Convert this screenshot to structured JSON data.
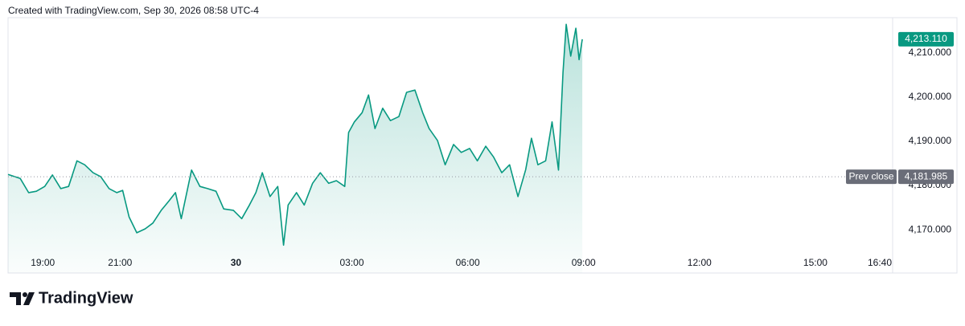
{
  "caption": "Created with TradingView.com, Sep 30, 2026 08:58 UTC-4",
  "brand": "TradingView",
  "chart_data": {
    "type": "area",
    "x": [
      "18:06",
      "18:25",
      "18:38",
      "18:50",
      "19:03",
      "19:15",
      "19:28",
      "19:40",
      "19:53",
      "20:05",
      "20:18",
      "20:30",
      "20:43",
      "20:55",
      "21:04",
      "21:14",
      "21:26",
      "21:39",
      "21:51",
      "22:04",
      "22:16",
      "22:26",
      "22:35",
      "22:51",
      "23:04",
      "23:16",
      "23:29",
      "23:41",
      "23:56",
      "00:09",
      "00:21",
      "00:31",
      "00:41",
      "00:53",
      "01:05",
      "01:14",
      "01:21",
      "01:34",
      "01:46",
      "01:59",
      "02:11",
      "02:24",
      "02:36",
      "02:49",
      "02:55",
      "03:04",
      "03:16",
      "03:26",
      "03:36",
      "03:48",
      "04:00",
      "04:13",
      "04:25",
      "04:38",
      "04:50",
      "05:00",
      "05:13",
      "05:25",
      "05:38",
      "05:50",
      "06:03",
      "06:15",
      "06:28",
      "06:40",
      "06:53",
      "07:05",
      "07:18",
      "07:30",
      "07:39",
      "07:49",
      "08:01",
      "08:11",
      "08:21",
      "08:28",
      "08:33",
      "08:40",
      "08:48",
      "08:53",
      "08:58"
    ],
    "series": [
      {
        "color": "#089981",
        "values": [
          4182.5,
          4181.6,
          4178.4,
          4178.7,
          4179.8,
          4182.4,
          4179.3,
          4179.8,
          4185.6,
          4184.7,
          4182.9,
          4182.0,
          4179.3,
          4178.4,
          4178.9,
          4172.9,
          4169.3,
          4170.2,
          4171.5,
          4174.4,
          4176.5,
          4178.4,
          4172.5,
          4183.5,
          4179.8,
          4179.3,
          4178.7,
          4174.7,
          4174.4,
          4172.5,
          4175.6,
          4178.4,
          4182.9,
          4177.5,
          4179.8,
          4166.5,
          4175.6,
          4178.4,
          4175.6,
          4180.5,
          4182.9,
          4180.5,
          4181.1,
          4179.8,
          4192.0,
          4194.4,
          4196.5,
          4200.5,
          4192.9,
          4197.5,
          4194.7,
          4195.6,
          4201.1,
          4201.6,
          4196.5,
          4192.9,
          4190.2,
          4184.7,
          4189.3,
          4187.5,
          4188.4,
          4185.6,
          4188.9,
          4186.5,
          4182.9,
          4184.7,
          4177.5,
          4183.6,
          4190.7,
          4184.7,
          4185.6,
          4194.4,
          4183.5,
          4205.6,
          4216.5,
          4209.3,
          4215.6,
          4208.5,
          4213.11
        ]
      }
    ],
    "xlim": [
      "18:06",
      "17:00"
    ],
    "xticks": [
      "19:00",
      "21:00",
      {
        "value": "00:00",
        "label": "30"
      },
      "03:00",
      "06:00",
      "09:00",
      "12:00",
      "15:00",
      "16:40"
    ],
    "ylim": [
      4160.2,
      4218
    ],
    "yticks": [
      {
        "value": 4170,
        "label": "4,170.000"
      },
      {
        "value": 4180,
        "label": "4,180.000"
      },
      {
        "value": 4190,
        "label": "4,190.000"
      },
      {
        "value": 4200,
        "label": "4,200.000"
      },
      {
        "value": 4210,
        "label": "4,210.000"
      }
    ],
    "prev_close": {
      "name": "Prev close",
      "value": 4181.985,
      "value_label": "4,181.985"
    },
    "last_price": {
      "value": 4213.11,
      "value_label": "4,213.110"
    }
  }
}
